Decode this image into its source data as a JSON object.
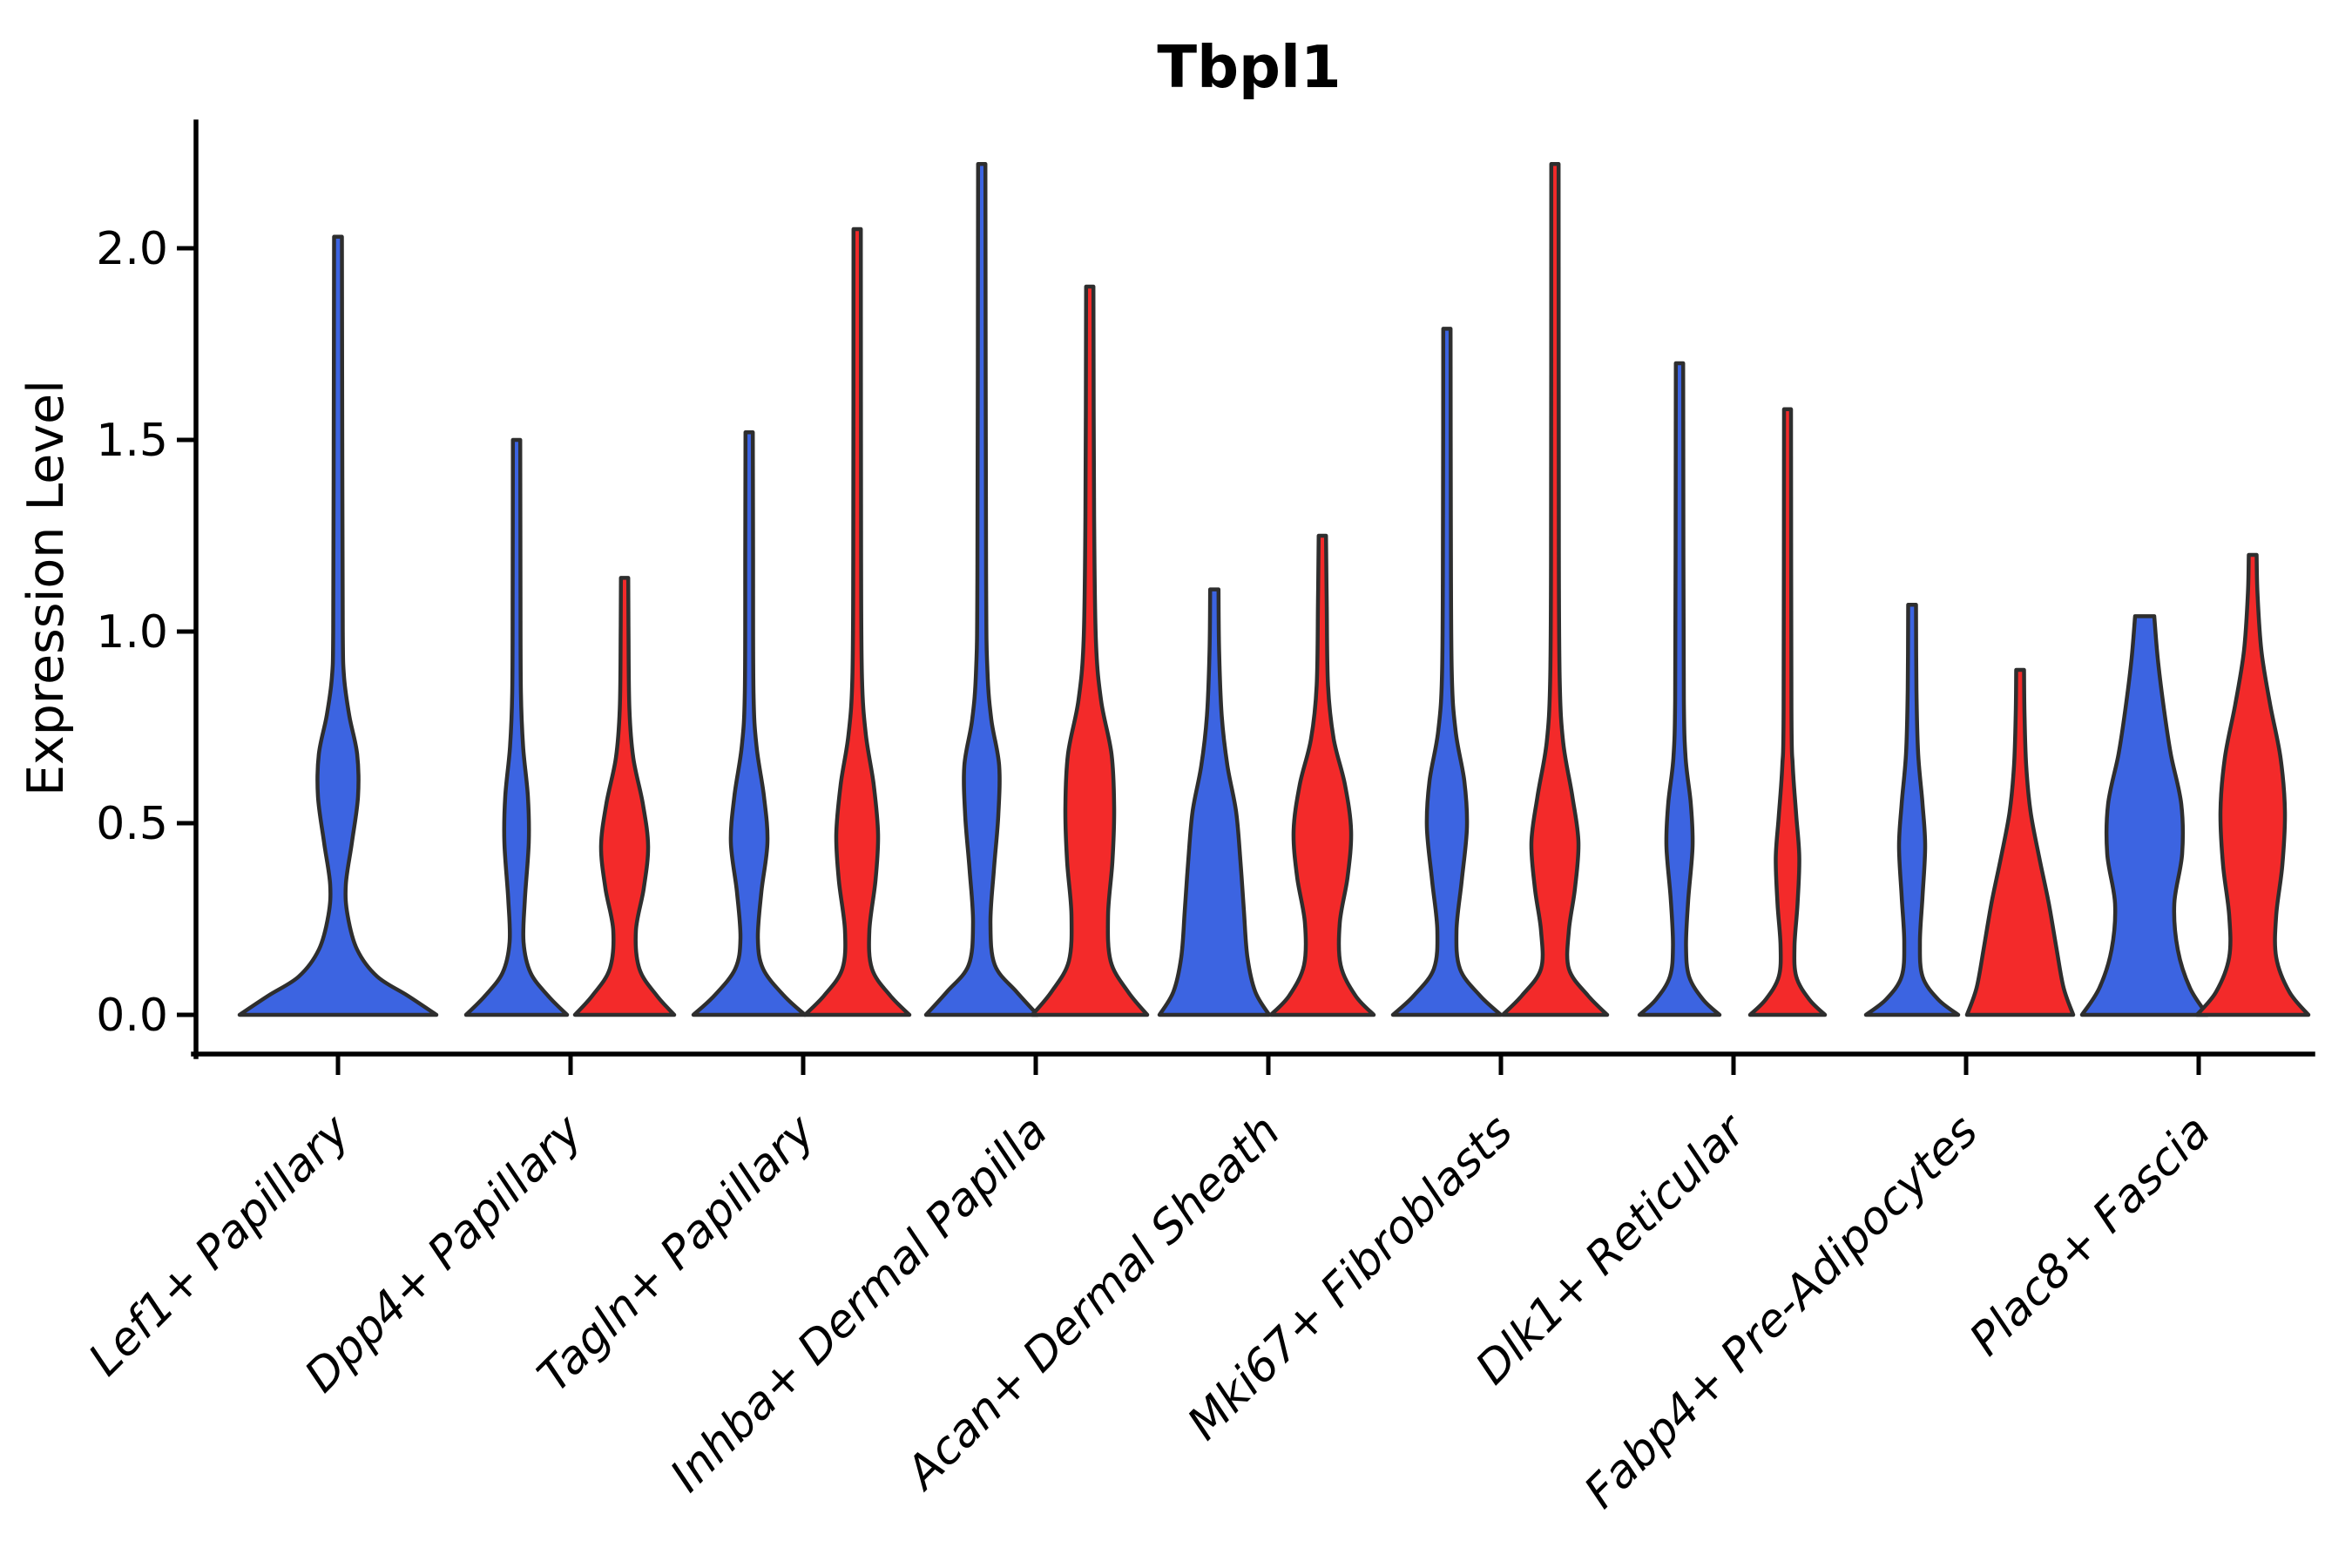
{
  "figure": {
    "title": "Tbpl1",
    "y_axis": {
      "label": "Expression Level",
      "tick_labels": [
        "0.0",
        "0.5",
        "1.0",
        "1.5",
        "2.0"
      ],
      "tick_values": [
        0.0,
        0.5,
        1.0,
        1.5,
        2.0
      ]
    },
    "x_axis": {
      "tick_labels": [
        "Lef1+ Papillary",
        "Dpp4+ Papillary",
        "Tagln+ Papillary",
        "Inhba+ Dermal Papilla",
        "Acan+ Dermal Sheath",
        "Mki67+ Fibroblasts",
        "Dlk1+ Reticular",
        "Fabp4+ Pre-Adipocytes",
        "Plac8+ Fascia"
      ]
    }
  },
  "chart_data": {
    "type": "violin",
    "title": "Tbpl1",
    "xlabel": "",
    "ylabel": "Expression Level",
    "ylim": [
      -0.1,
      2.33
    ],
    "yticks": [
      0.0,
      0.5,
      1.0,
      1.5,
      2.0
    ],
    "grid": false,
    "legend": "none",
    "categories": [
      "Lef1+ Papillary",
      "Dpp4+ Papillary",
      "Tagln+ Papillary",
      "Inhba+ Dermal Papilla",
      "Acan+ Dermal Sheath",
      "Mki67+ Fibroblasts",
      "Dlk1+ Reticular",
      "Fabp4+ Pre-Adipocytes",
      "Plac8+ Fascia"
    ],
    "series": [
      {
        "name": "blue",
        "color": "#3C64E1",
        "max_expression": [
          2.03,
          1.5,
          1.52,
          2.22,
          1.11,
          1.79,
          1.7,
          1.07,
          1.04
        ]
      },
      {
        "name": "red",
        "color": "#F32A2A",
        "max_expression": [
          null,
          1.14,
          2.05,
          1.9,
          1.25,
          2.22,
          1.58,
          0.9,
          1.2
        ]
      }
    ],
    "violins": [
      {
        "category": "Lef1+ Papillary",
        "series": "blue",
        "color": "#3C64E1",
        "max": 2.03,
        "profile": [
          [
            0,
            113
          ],
          [
            0.05,
            80
          ],
          [
            0.1,
            45
          ],
          [
            0.17,
            22
          ],
          [
            0.26,
            11
          ],
          [
            0.34,
            9
          ],
          [
            0.45,
            16
          ],
          [
            0.57,
            23
          ],
          [
            0.68,
            22
          ],
          [
            0.78,
            13
          ],
          [
            0.88,
            7
          ],
          [
            1.0,
            5.5
          ],
          [
            1.4,
            5
          ],
          [
            2.03,
            4.5
          ]
        ]
      },
      {
        "category": "Dpp4+ Papillary",
        "series": "blue",
        "color": "#3C64E1",
        "max": 1.5,
        "profile": [
          [
            0,
            58
          ],
          [
            0.05,
            36
          ],
          [
            0.11,
            16
          ],
          [
            0.19,
            8
          ],
          [
            0.3,
            9.5
          ],
          [
            0.45,
            14
          ],
          [
            0.57,
            13
          ],
          [
            0.7,
            7.5
          ],
          [
            0.84,
            5
          ],
          [
            1.1,
            4.5
          ],
          [
            1.5,
            4.2
          ]
        ]
      },
      {
        "category": "Dpp4+ Papillary",
        "series": "red",
        "color": "#F32A2A",
        "max": 1.14,
        "profile": [
          [
            0,
            57
          ],
          [
            0.05,
            37
          ],
          [
            0.12,
            17
          ],
          [
            0.22,
            13
          ],
          [
            0.33,
            22
          ],
          [
            0.44,
            27
          ],
          [
            0.55,
            21
          ],
          [
            0.67,
            10
          ],
          [
            0.8,
            5.5
          ],
          [
            1.0,
            4.5
          ],
          [
            1.14,
            4.2
          ]
        ]
      },
      {
        "category": "Tagln+ Papillary",
        "series": "blue",
        "color": "#3C64E1",
        "max": 1.52,
        "profile": [
          [
            0,
            64
          ],
          [
            0.05,
            40
          ],
          [
            0.12,
            16
          ],
          [
            0.2,
            10
          ],
          [
            0.32,
            14
          ],
          [
            0.45,
            21
          ],
          [
            0.57,
            17
          ],
          [
            0.7,
            8.5
          ],
          [
            0.84,
            5
          ],
          [
            1.2,
            4.5
          ],
          [
            1.52,
            4.2
          ]
        ]
      },
      {
        "category": "Tagln+ Papillary",
        "series": "red",
        "color": "#F32A2A",
        "max": 2.05,
        "profile": [
          [
            0,
            60
          ],
          [
            0.05,
            38
          ],
          [
            0.12,
            17
          ],
          [
            0.22,
            14
          ],
          [
            0.35,
            21
          ],
          [
            0.47,
            24
          ],
          [
            0.6,
            19
          ],
          [
            0.73,
            10
          ],
          [
            0.88,
            5.5
          ],
          [
            1.2,
            4.5
          ],
          [
            2.05,
            4.2
          ]
        ]
      },
      {
        "category": "Inhba+ Dermal Papilla",
        "series": "blue",
        "color": "#3C64E1",
        "max": 2.22,
        "profile": [
          [
            0,
            64
          ],
          [
            0.06,
            40
          ],
          [
            0.13,
            15
          ],
          [
            0.24,
            10
          ],
          [
            0.38,
            14
          ],
          [
            0.52,
            19
          ],
          [
            0.65,
            20
          ],
          [
            0.77,
            11
          ],
          [
            0.9,
            6.5
          ],
          [
            1.15,
            5
          ],
          [
            2.22,
            4.2
          ]
        ]
      },
      {
        "category": "Inhba+ Dermal Papilla",
        "series": "red",
        "color": "#F32A2A",
        "max": 1.9,
        "profile": [
          [
            0,
            66
          ],
          [
            0.06,
            44
          ],
          [
            0.14,
            24
          ],
          [
            0.26,
            21
          ],
          [
            0.4,
            26
          ],
          [
            0.54,
            28
          ],
          [
            0.68,
            25
          ],
          [
            0.82,
            13
          ],
          [
            0.98,
            7
          ],
          [
            1.3,
            5
          ],
          [
            1.9,
            4.2
          ]
        ]
      },
      {
        "category": "Acan+ Dermal Sheath",
        "series": "blue",
        "color": "#3C64E1",
        "max": 1.11,
        "profile": [
          [
            0,
            63
          ],
          [
            0.06,
            47
          ],
          [
            0.15,
            38
          ],
          [
            0.27,
            34
          ],
          [
            0.4,
            30
          ],
          [
            0.53,
            25
          ],
          [
            0.65,
            15
          ],
          [
            0.78,
            8.5
          ],
          [
            0.95,
            5.5
          ],
          [
            1.11,
            4.8
          ]
        ]
      },
      {
        "category": "Acan+ Dermal Sheath",
        "series": "red",
        "color": "#F32A2A",
        "max": 1.25,
        "profile": [
          [
            0,
            59
          ],
          [
            0.05,
            38
          ],
          [
            0.13,
            21
          ],
          [
            0.24,
            20
          ],
          [
            0.36,
            29
          ],
          [
            0.48,
            33
          ],
          [
            0.6,
            26
          ],
          [
            0.72,
            13
          ],
          [
            0.86,
            6.5
          ],
          [
            1.08,
            5
          ],
          [
            1.25,
            4.2
          ]
        ]
      },
      {
        "category": "Mki67+ Fibroblasts",
        "series": "blue",
        "color": "#3C64E1",
        "max": 1.79,
        "profile": [
          [
            0,
            62
          ],
          [
            0.05,
            38
          ],
          [
            0.12,
            15
          ],
          [
            0.22,
            11
          ],
          [
            0.35,
            17
          ],
          [
            0.49,
            23
          ],
          [
            0.61,
            20
          ],
          [
            0.74,
            10
          ],
          [
            0.9,
            5.5
          ],
          [
            1.3,
            4.5
          ],
          [
            1.79,
            4.2
          ]
        ]
      },
      {
        "category": "Mki67+ Fibroblasts",
        "series": "red",
        "color": "#F32A2A",
        "max": 2.22,
        "profile": [
          [
            0,
            60
          ],
          [
            0.05,
            38
          ],
          [
            0.12,
            16
          ],
          [
            0.22,
            16
          ],
          [
            0.33,
            23
          ],
          [
            0.45,
            27
          ],
          [
            0.57,
            20
          ],
          [
            0.71,
            9.5
          ],
          [
            0.87,
            5.5
          ],
          [
            1.2,
            4.5
          ],
          [
            2.22,
            4.2
          ]
        ]
      },
      {
        "category": "Dlk1+ Reticular",
        "series": "blue",
        "color": "#3C64E1",
        "max": 1.7,
        "profile": [
          [
            0,
            46
          ],
          [
            0.04,
            27
          ],
          [
            0.1,
            11
          ],
          [
            0.18,
            7.5
          ],
          [
            0.3,
            10
          ],
          [
            0.44,
            15
          ],
          [
            0.55,
            13
          ],
          [
            0.67,
            7
          ],
          [
            0.82,
            5
          ],
          [
            1.2,
            4.5
          ],
          [
            1.7,
            4.2
          ]
        ]
      },
      {
        "category": "Dlk1+ Reticular",
        "series": "red",
        "color": "#F32A2A",
        "max": 1.58,
        "profile": [
          [
            0,
            43
          ],
          [
            0.04,
            25
          ],
          [
            0.1,
            10
          ],
          [
            0.18,
            8
          ],
          [
            0.29,
            11.5
          ],
          [
            0.41,
            13.5
          ],
          [
            0.52,
            10
          ],
          [
            0.65,
            6
          ],
          [
            0.8,
            4.5
          ],
          [
            1.58,
            4
          ]
        ]
      },
      {
        "category": "Fabp4+ Pre-Adipocytes",
        "series": "blue",
        "color": "#3C64E1",
        "max": 1.07,
        "profile": [
          [
            0,
            53
          ],
          [
            0.04,
            30
          ],
          [
            0.1,
            12
          ],
          [
            0.19,
            9
          ],
          [
            0.31,
            12
          ],
          [
            0.44,
            15
          ],
          [
            0.55,
            12
          ],
          [
            0.68,
            7
          ],
          [
            0.85,
            5
          ],
          [
            1.07,
            4.5
          ]
        ]
      },
      {
        "category": "Fabp4+ Pre-Adipocytes",
        "series": "red",
        "color": "#F32A2A",
        "max": 0.9,
        "profile": [
          [
            0,
            61
          ],
          [
            0.07,
            50
          ],
          [
            0.17,
            42
          ],
          [
            0.29,
            33
          ],
          [
            0.41,
            22
          ],
          [
            0.53,
            12
          ],
          [
            0.65,
            7
          ],
          [
            0.79,
            5
          ],
          [
            0.9,
            4.5
          ]
        ]
      },
      {
        "category": "Plac8+ Fascia",
        "series": "blue",
        "color": "#3C64E1",
        "max": 1.04,
        "profile": [
          [
            0,
            72
          ],
          [
            0.07,
            52
          ],
          [
            0.17,
            38
          ],
          [
            0.29,
            34
          ],
          [
            0.42,
            43
          ],
          [
            0.55,
            42
          ],
          [
            0.68,
            30
          ],
          [
            0.8,
            22
          ],
          [
            0.93,
            15
          ],
          [
            1.04,
            11
          ]
        ]
      },
      {
        "category": "Plac8+ Fascia",
        "series": "red",
        "color": "#F32A2A",
        "max": 1.2,
        "profile": [
          [
            0,
            64
          ],
          [
            0.06,
            42
          ],
          [
            0.15,
            27
          ],
          [
            0.26,
            27
          ],
          [
            0.39,
            34
          ],
          [
            0.53,
            37
          ],
          [
            0.67,
            32
          ],
          [
            0.81,
            20
          ],
          [
            0.95,
            10
          ],
          [
            1.1,
            5.5
          ],
          [
            1.2,
            4.5
          ]
        ]
      }
    ]
  },
  "style": {
    "violin_blue": "#3C64E1",
    "violin_red": "#F32A2A",
    "violin_outline": "#2E2E2E",
    "axis_color": "#000000",
    "background": "#FFFFFF"
  }
}
